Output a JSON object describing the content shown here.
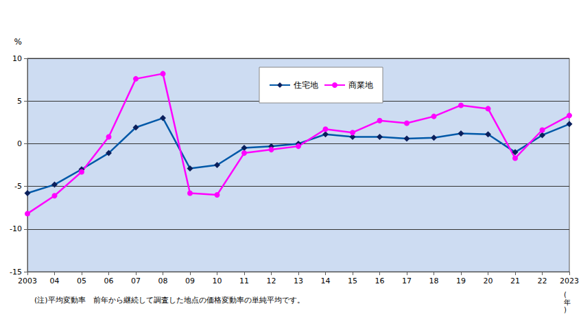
{
  "chart_data": {
    "type": "line",
    "y_label": "%",
    "x_label": "(年)",
    "note": "(注)平均変動率　前年から継続して調査した地点の価格変動率の単純平均です。",
    "categories": [
      "2003",
      "04",
      "05",
      "06",
      "07",
      "08",
      "09",
      "10",
      "11",
      "12",
      "13",
      "14",
      "15",
      "16",
      "17",
      "18",
      "19",
      "20",
      "21",
      "22",
      "2023"
    ],
    "series": [
      {
        "name": "住宅地",
        "color": "#0058a8",
        "marker": "diamond",
        "line_style": "solid",
        "values": [
          -5.8,
          -4.8,
          -3.0,
          -1.1,
          1.9,
          3.0,
          -2.9,
          -2.5,
          -0.5,
          -0.3,
          0.0,
          1.1,
          0.8,
          0.8,
          0.6,
          0.7,
          1.2,
          1.1,
          -1.0,
          1.0,
          2.3
        ]
      },
      {
        "name": "商業地",
        "color": "#ff00ff",
        "marker": "circle",
        "line_style": "solid",
        "values": [
          -8.2,
          -6.1,
          -3.3,
          0.8,
          7.6,
          8.2,
          -5.8,
          -6.0,
          -1.1,
          -0.7,
          -0.3,
          1.7,
          1.3,
          2.7,
          2.4,
          3.2,
          4.5,
          4.1,
          -1.7,
          1.6,
          3.3
        ]
      }
    ],
    "ylim": [
      -15,
      10
    ],
    "yticks": [
      -15,
      -10,
      -5,
      0,
      5,
      10
    ],
    "grid": true,
    "legend": "top"
  }
}
